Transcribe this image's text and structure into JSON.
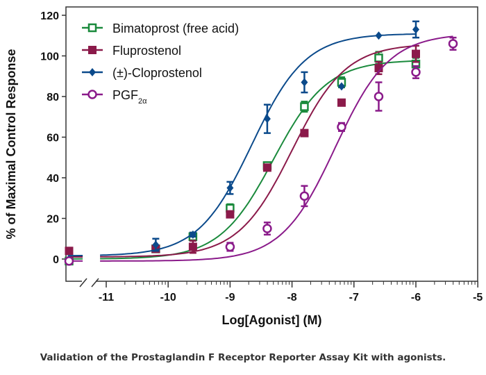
{
  "chart_data": {
    "type": "scatter",
    "xlabel": "Log[Agonist] (M)",
    "ylabel": "% of Maximal Control Response",
    "xlim": [
      -11.65,
      -5
    ],
    "ylim": [
      -11,
      122
    ],
    "x_ticks": [
      -11,
      -10,
      -9,
      -8,
      -7,
      -6,
      -5
    ],
    "y_ticks": [
      0,
      20,
      40,
      60,
      80,
      100,
      120
    ],
    "x_axis_break": true,
    "legend_position": "top-left",
    "grid": false,
    "series": [
      {
        "name": "Bimatoprost (free acid)",
        "color": "#1a8a3c",
        "marker": "open-square",
        "x": [
          -11.6,
          -10.2,
          -9.6,
          -9,
          -8.4,
          -7.8,
          -7.2,
          -6.6,
          -6
        ],
        "y": [
          -1,
          5,
          11,
          25,
          46,
          75,
          87,
          99,
          96
        ],
        "yerr": [
          1,
          1,
          2,
          2,
          1.5,
          2.5,
          2.5,
          3,
          3
        ]
      },
      {
        "name": "Fluprostenol",
        "color": "#8b1a4a",
        "marker": "filled-square",
        "x": [
          -11.6,
          -10.2,
          -9.6,
          -9,
          -8.4,
          -7.8,
          -7.2,
          -6.6,
          -6
        ],
        "y": [
          4,
          5,
          6,
          22,
          45,
          62,
          77,
          94,
          101
        ],
        "yerr": [
          0,
          0.5,
          3,
          1,
          1,
          1,
          1,
          3,
          4
        ]
      },
      {
        "name": "(±)-Cloprostenol",
        "color": "#0b4a8b",
        "marker": "diamond",
        "x": [
          -11.6,
          -10.2,
          -9.6,
          -9,
          -8.4,
          -7.8,
          -7.2,
          -6.6,
          -6
        ],
        "y": [
          0,
          7,
          12,
          35,
          69,
          87,
          85,
          110,
          113
        ],
        "yerr": [
          0,
          3,
          1,
          3,
          7,
          5,
          0,
          0,
          4
        ]
      },
      {
        "name": "PGF",
        "name_sub": "2α",
        "color": "#8a1a8a",
        "marker": "open-circle",
        "x": [
          -11.6,
          -9,
          -8.4,
          -7.8,
          -7.2,
          -6.6,
          -6,
          -5.4
        ],
        "y": [
          -1,
          6,
          15,
          31,
          65,
          80,
          92,
          106
        ],
        "yerr": [
          1,
          2,
          3,
          5,
          2,
          7,
          3,
          3
        ]
      }
    ]
  },
  "caption": "Validation of the Prostaglandin F Receptor Reporter Assay Kit with agonists."
}
